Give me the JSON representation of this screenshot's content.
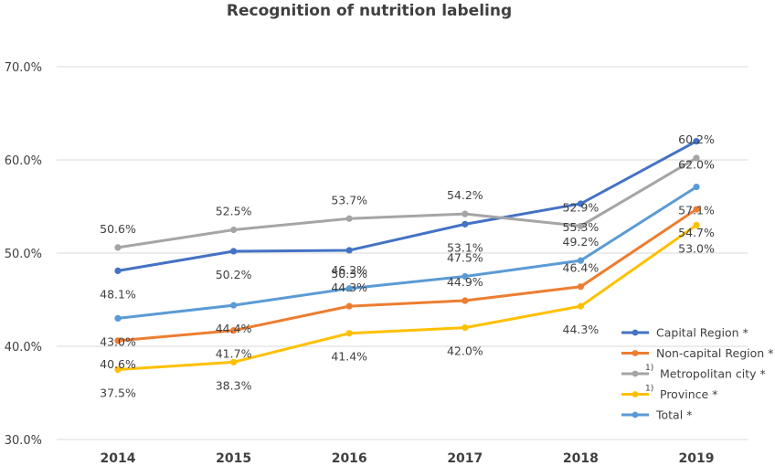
{
  "chart_data": {
    "type": "line",
    "title": "Recognition of nutrition labeling",
    "categories": [
      "2014",
      "2015",
      "2016",
      "2017",
      "2018",
      "2019"
    ],
    "ylim": [
      30,
      70
    ],
    "yticks": [
      "30.0%",
      "40.0%",
      "50.0%",
      "60.0%",
      "70.0%"
    ],
    "ytick_values": [
      30,
      40,
      50,
      60,
      70
    ],
    "grid": true,
    "legend_position": "bottom-right",
    "series": [
      {
        "name": "Capital Region",
        "legend_marker": "",
        "legend_suffix": "*",
        "color": "#4472c4",
        "values": [
          48.1,
          50.2,
          50.3,
          53.1,
          55.3,
          62.0
        ],
        "labels": [
          "48.1%",
          "50.2%",
          "50.3%",
          "53.1%",
          "55.3%",
          "62.0%"
        ],
        "label_pos": [
          "below",
          "below",
          "below",
          "below",
          "below",
          "below"
        ]
      },
      {
        "name": "Non-capital Region",
        "legend_marker": "",
        "legend_suffix": "*",
        "color": "#ed7d31",
        "values": [
          40.6,
          41.7,
          44.3,
          44.9,
          46.4,
          54.7
        ],
        "labels": [
          "40.6%",
          "41.7%",
          "44.3%",
          "44.9%",
          "46.4%",
          "54.7%"
        ],
        "label_pos": [
          "below",
          "below",
          "above",
          "above",
          "above",
          "below"
        ]
      },
      {
        "name": "Metropolitan city",
        "legend_marker": "1)",
        "legend_suffix": "*",
        "color": "#a5a5a5",
        "values": [
          50.6,
          52.5,
          53.7,
          54.2,
          52.9,
          60.2
        ],
        "labels": [
          "50.6%",
          "52.5%",
          "53.7%",
          "54.2%",
          "52.9%",
          "60.2%"
        ],
        "label_pos": [
          "above",
          "above",
          "above",
          "above",
          "above",
          "above"
        ]
      },
      {
        "name": "Province",
        "legend_marker": "1)",
        "legend_suffix": "*",
        "color": "#ffc000",
        "values": [
          37.5,
          38.3,
          41.4,
          42.0,
          44.3,
          53.0
        ],
        "labels": [
          "37.5%",
          "38.3%",
          "41.4%",
          "42.0%",
          "44.3%",
          "53.0%"
        ],
        "label_pos": [
          "below",
          "below",
          "below",
          "below",
          "below",
          "below"
        ]
      },
      {
        "name": "Total",
        "legend_marker": "",
        "legend_suffix": "*",
        "color": "#5b9bd5",
        "values": [
          43.0,
          44.4,
          46.2,
          47.5,
          49.2,
          57.1
        ],
        "labels": [
          "43.0%",
          "44.4%",
          "46.2%",
          "47.5%",
          "49.2%",
          "57.1%"
        ],
        "label_pos": [
          "below",
          "below",
          "above",
          "above",
          "above",
          "below"
        ]
      }
    ]
  }
}
